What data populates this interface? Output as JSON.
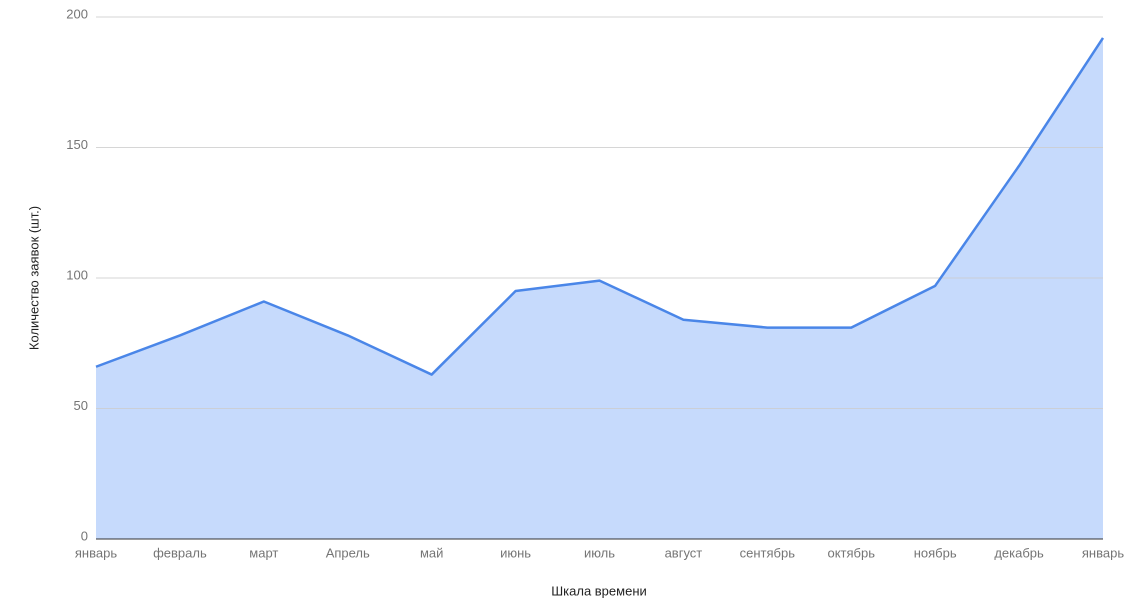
{
  "chart_data": {
    "type": "area",
    "x_label": "Шкала времени",
    "y_label": "Количество заявок (шт.)",
    "categories": [
      "январь",
      "февраль",
      "март",
      "Апрель",
      "май",
      "июнь",
      "июль",
      "август",
      "сентябрь",
      "октябрь",
      "ноябрь",
      "декабрь",
      "январь"
    ],
    "values": [
      66,
      78,
      91,
      78,
      63,
      95,
      99,
      84,
      81,
      81,
      97,
      143,
      192
    ],
    "color": "#4a86e8",
    "fill": "#c6dafc",
    "ylim": [
      0,
      200
    ],
    "yticks": [
      0,
      50,
      100,
      150,
      200
    ],
    "grid": true
  }
}
